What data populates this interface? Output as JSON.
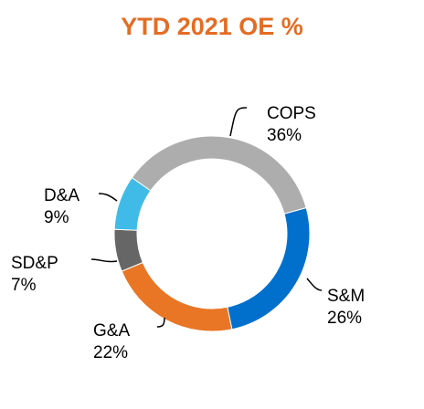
{
  "chart_data": {
    "type": "pie",
    "title": "YTD 2021 OE %",
    "title_color": "#E46C24",
    "donut": true,
    "categories": [
      "COPS",
      "S&M",
      "G&A",
      "SD&P",
      "D&A"
    ],
    "values": [
      36,
      26,
      22,
      7,
      9
    ],
    "value_labels": [
      "36%",
      "26%",
      "22%",
      "7%",
      "9%"
    ],
    "colors": [
      "#ADADAD",
      "#0070CC",
      "#E87624",
      "#666666",
      "#40BBE8"
    ],
    "legend": "none"
  }
}
